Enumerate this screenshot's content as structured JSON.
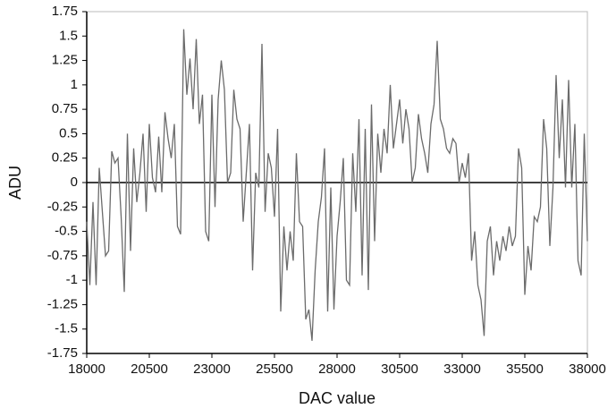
{
  "chart_data": {
    "type": "line",
    "xlabel": "DAC value",
    "ylabel": "ADU",
    "x": [
      18000,
      18125,
      18250,
      18375,
      18500,
      18625,
      18750,
      18875,
      19000,
      19125,
      19250,
      19375,
      19500,
      19625,
      19750,
      19875,
      20000,
      20125,
      20250,
      20375,
      20500,
      20625,
      20750,
      20875,
      21000,
      21125,
      21250,
      21375,
      21500,
      21625,
      21750,
      21875,
      22000,
      22125,
      22250,
      22375,
      22500,
      22625,
      22750,
      22875,
      23000,
      23125,
      23250,
      23375,
      23500,
      23625,
      23750,
      23875,
      24000,
      24125,
      24250,
      24375,
      24500,
      24625,
      24750,
      24875,
      25000,
      25125,
      25250,
      25375,
      25500,
      25625,
      25750,
      25875,
      26000,
      26125,
      26250,
      26375,
      26500,
      26625,
      26750,
      26875,
      27000,
      27125,
      27250,
      27375,
      27500,
      27625,
      27750,
      27875,
      28000,
      28125,
      28250,
      28375,
      28500,
      28625,
      28750,
      28875,
      29000,
      29125,
      29250,
      29375,
      29500,
      29625,
      29750,
      29875,
      30000,
      30125,
      30250,
      30375,
      30500,
      30625,
      30750,
      30875,
      31000,
      31125,
      31250,
      31375,
      31500,
      31625,
      31750,
      31875,
      32000,
      32125,
      32250,
      32375,
      32500,
      32625,
      32750,
      32875,
      33000,
      33125,
      33250,
      33375,
      33500,
      33625,
      33750,
      33875,
      34000,
      34125,
      34250,
      34375,
      34500,
      34625,
      34750,
      34875,
      35000,
      35125,
      35250,
      35375,
      35500,
      35625,
      35750,
      35875,
      36000,
      36125,
      36250,
      36375,
      36500,
      36625,
      36750,
      36875,
      37000,
      37125,
      37250,
      37375,
      37500,
      37625,
      37750,
      37875,
      38000
    ],
    "series": [
      {
        "color": "#6b6b6b",
        "values": [
          -0.4,
          -1.05,
          -0.2,
          -1.05,
          0.15,
          -0.3,
          -0.75,
          -0.7,
          0.32,
          0.2,
          0.25,
          -0.35,
          -1.12,
          0.5,
          -0.7,
          0.35,
          -0.2,
          0.1,
          0.5,
          -0.3,
          0.6,
          0.05,
          -0.1,
          0.47,
          -0.1,
          0.72,
          0.45,
          0.25,
          0.6,
          -0.45,
          -0.53,
          1.57,
          0.9,
          1.27,
          0.75,
          1.47,
          0.6,
          0.9,
          -0.5,
          -0.6,
          0.9,
          -0.25,
          0.85,
          1.25,
          0.95,
          0.0,
          0.1,
          0.95,
          0.65,
          0.55,
          -0.4,
          0.1,
          0.6,
          -0.9,
          0.1,
          -0.05,
          1.42,
          -0.3,
          0.3,
          0.15,
          -0.35,
          0.55,
          -1.32,
          -0.45,
          -0.9,
          -0.5,
          -0.8,
          0.3,
          -0.4,
          -0.45,
          -1.4,
          -1.3,
          -1.62,
          -0.9,
          -0.4,
          -0.15,
          0.35,
          -1.32,
          -0.05,
          -1.3,
          -0.55,
          -0.2,
          0.25,
          -1.0,
          -1.05,
          0.3,
          -0.3,
          0.65,
          -0.95,
          0.55,
          -1.1,
          0.8,
          -0.6,
          0.5,
          0.1,
          0.55,
          0.3,
          1.0,
          0.35,
          0.6,
          0.85,
          0.4,
          0.75,
          0.55,
          0.0,
          0.15,
          0.7,
          0.45,
          0.3,
          0.1,
          0.6,
          0.8,
          1.45,
          0.65,
          0.55,
          0.35,
          0.3,
          0.45,
          0.4,
          0.0,
          0.2,
          0.05,
          0.3,
          -0.8,
          -0.5,
          -1.05,
          -1.2,
          -1.57,
          -0.6,
          -0.45,
          -0.95,
          -0.6,
          -0.8,
          -0.55,
          -0.7,
          -0.45,
          -0.65,
          -0.55,
          0.35,
          0.15,
          -1.15,
          -0.65,
          -0.9,
          -0.35,
          -0.4,
          -0.25,
          0.65,
          0.35,
          -0.65,
          -0.05,
          1.1,
          0.25,
          0.85,
          -0.05,
          1.05,
          -0.05,
          0.6,
          -0.8,
          -0.95,
          0.5,
          -0.6
        ]
      }
    ],
    "xlim": [
      18000,
      38000
    ],
    "xticks": [
      18000,
      20500,
      23000,
      25500,
      28000,
      30500,
      33000,
      35500,
      38000
    ],
    "ylim": [
      -1.75,
      1.75
    ],
    "yticks": [
      -1.75,
      -1.5,
      -1.25,
      -1,
      -0.75,
      -0.5,
      -0.25,
      0,
      0.25,
      0.5,
      0.75,
      1,
      1.25,
      1.5,
      1.75
    ],
    "grid": false
  }
}
